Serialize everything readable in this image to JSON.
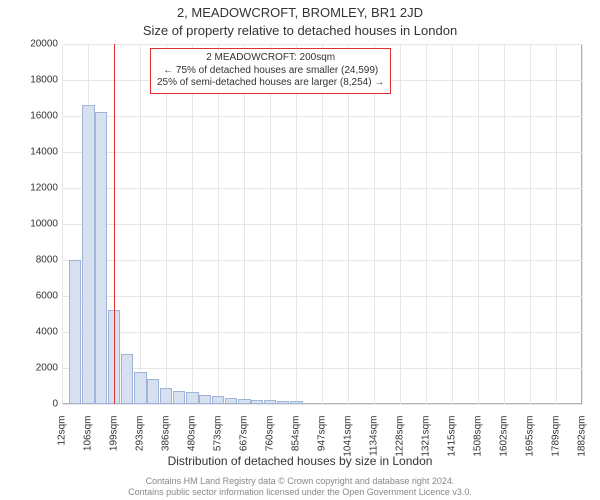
{
  "chart": {
    "type": "histogram",
    "title_line1": "2, MEADOWCROFT, BROMLEY, BR1 2JD",
    "title_line2": "Size of property relative to detached houses in London",
    "title_fontsize": 13,
    "y_axis_title": "Number of detached properties",
    "x_axis_title": "Distribution of detached houses by size in London",
    "axis_title_fontsize": 12,
    "tick_fontsize": 10,
    "background_color": "#ffffff",
    "plot_bg_color": "#ffffff",
    "grid_color": "#e6e6e6",
    "axis_line_color": "#b0b0b0",
    "bar_fill_color": "#d6e0ef",
    "bar_edge_color": "#9fb4d6",
    "ylim": [
      0,
      20000
    ],
    "ytick_step": 2000,
    "x_ticks": [
      "12sqm",
      "106sqm",
      "199sqm",
      "293sqm",
      "386sqm",
      "480sqm",
      "573sqm",
      "667sqm",
      "760sqm",
      "854sqm",
      "947sqm",
      "1041sqm",
      "1134sqm",
      "1228sqm",
      "1321sqm",
      "1415sqm",
      "1508sqm",
      "1602sqm",
      "1695sqm",
      "1789sqm",
      "1882sqm"
    ],
    "x_min": 12,
    "x_max": 1882,
    "bar_centers": [
      59,
      106,
      152,
      199,
      246,
      293,
      339,
      386,
      433,
      480,
      526,
      573,
      620,
      667,
      713,
      760,
      807,
      854
    ],
    "bar_values": [
      8000,
      16600,
      16200,
      5200,
      2800,
      1800,
      1400,
      900,
      750,
      650,
      500,
      420,
      350,
      300,
      250,
      210,
      180,
      150
    ],
    "bar_width_sqm": 46,
    "marker": {
      "x_value": 200,
      "line_color": "#e03030",
      "line_width": 1
    },
    "annotation": {
      "lines": [
        "2 MEADOWCROFT: 200sqm",
        "← 75% of detached houses are smaller (24,599)",
        "25% of semi-detached houses are larger (8,254) →"
      ],
      "border_color": "#e03030",
      "text_color": "#333333",
      "fontsize": 10,
      "bg_color": "rgba(255,255,255,0.9)"
    },
    "footer_lines": [
      "Contains HM Land Registry data © Crown copyright and database right 2024.",
      "Contains public sector information licensed under the Open Government Licence v3.0."
    ],
    "footer_color": "#888888",
    "footer_fontsize": 9
  }
}
